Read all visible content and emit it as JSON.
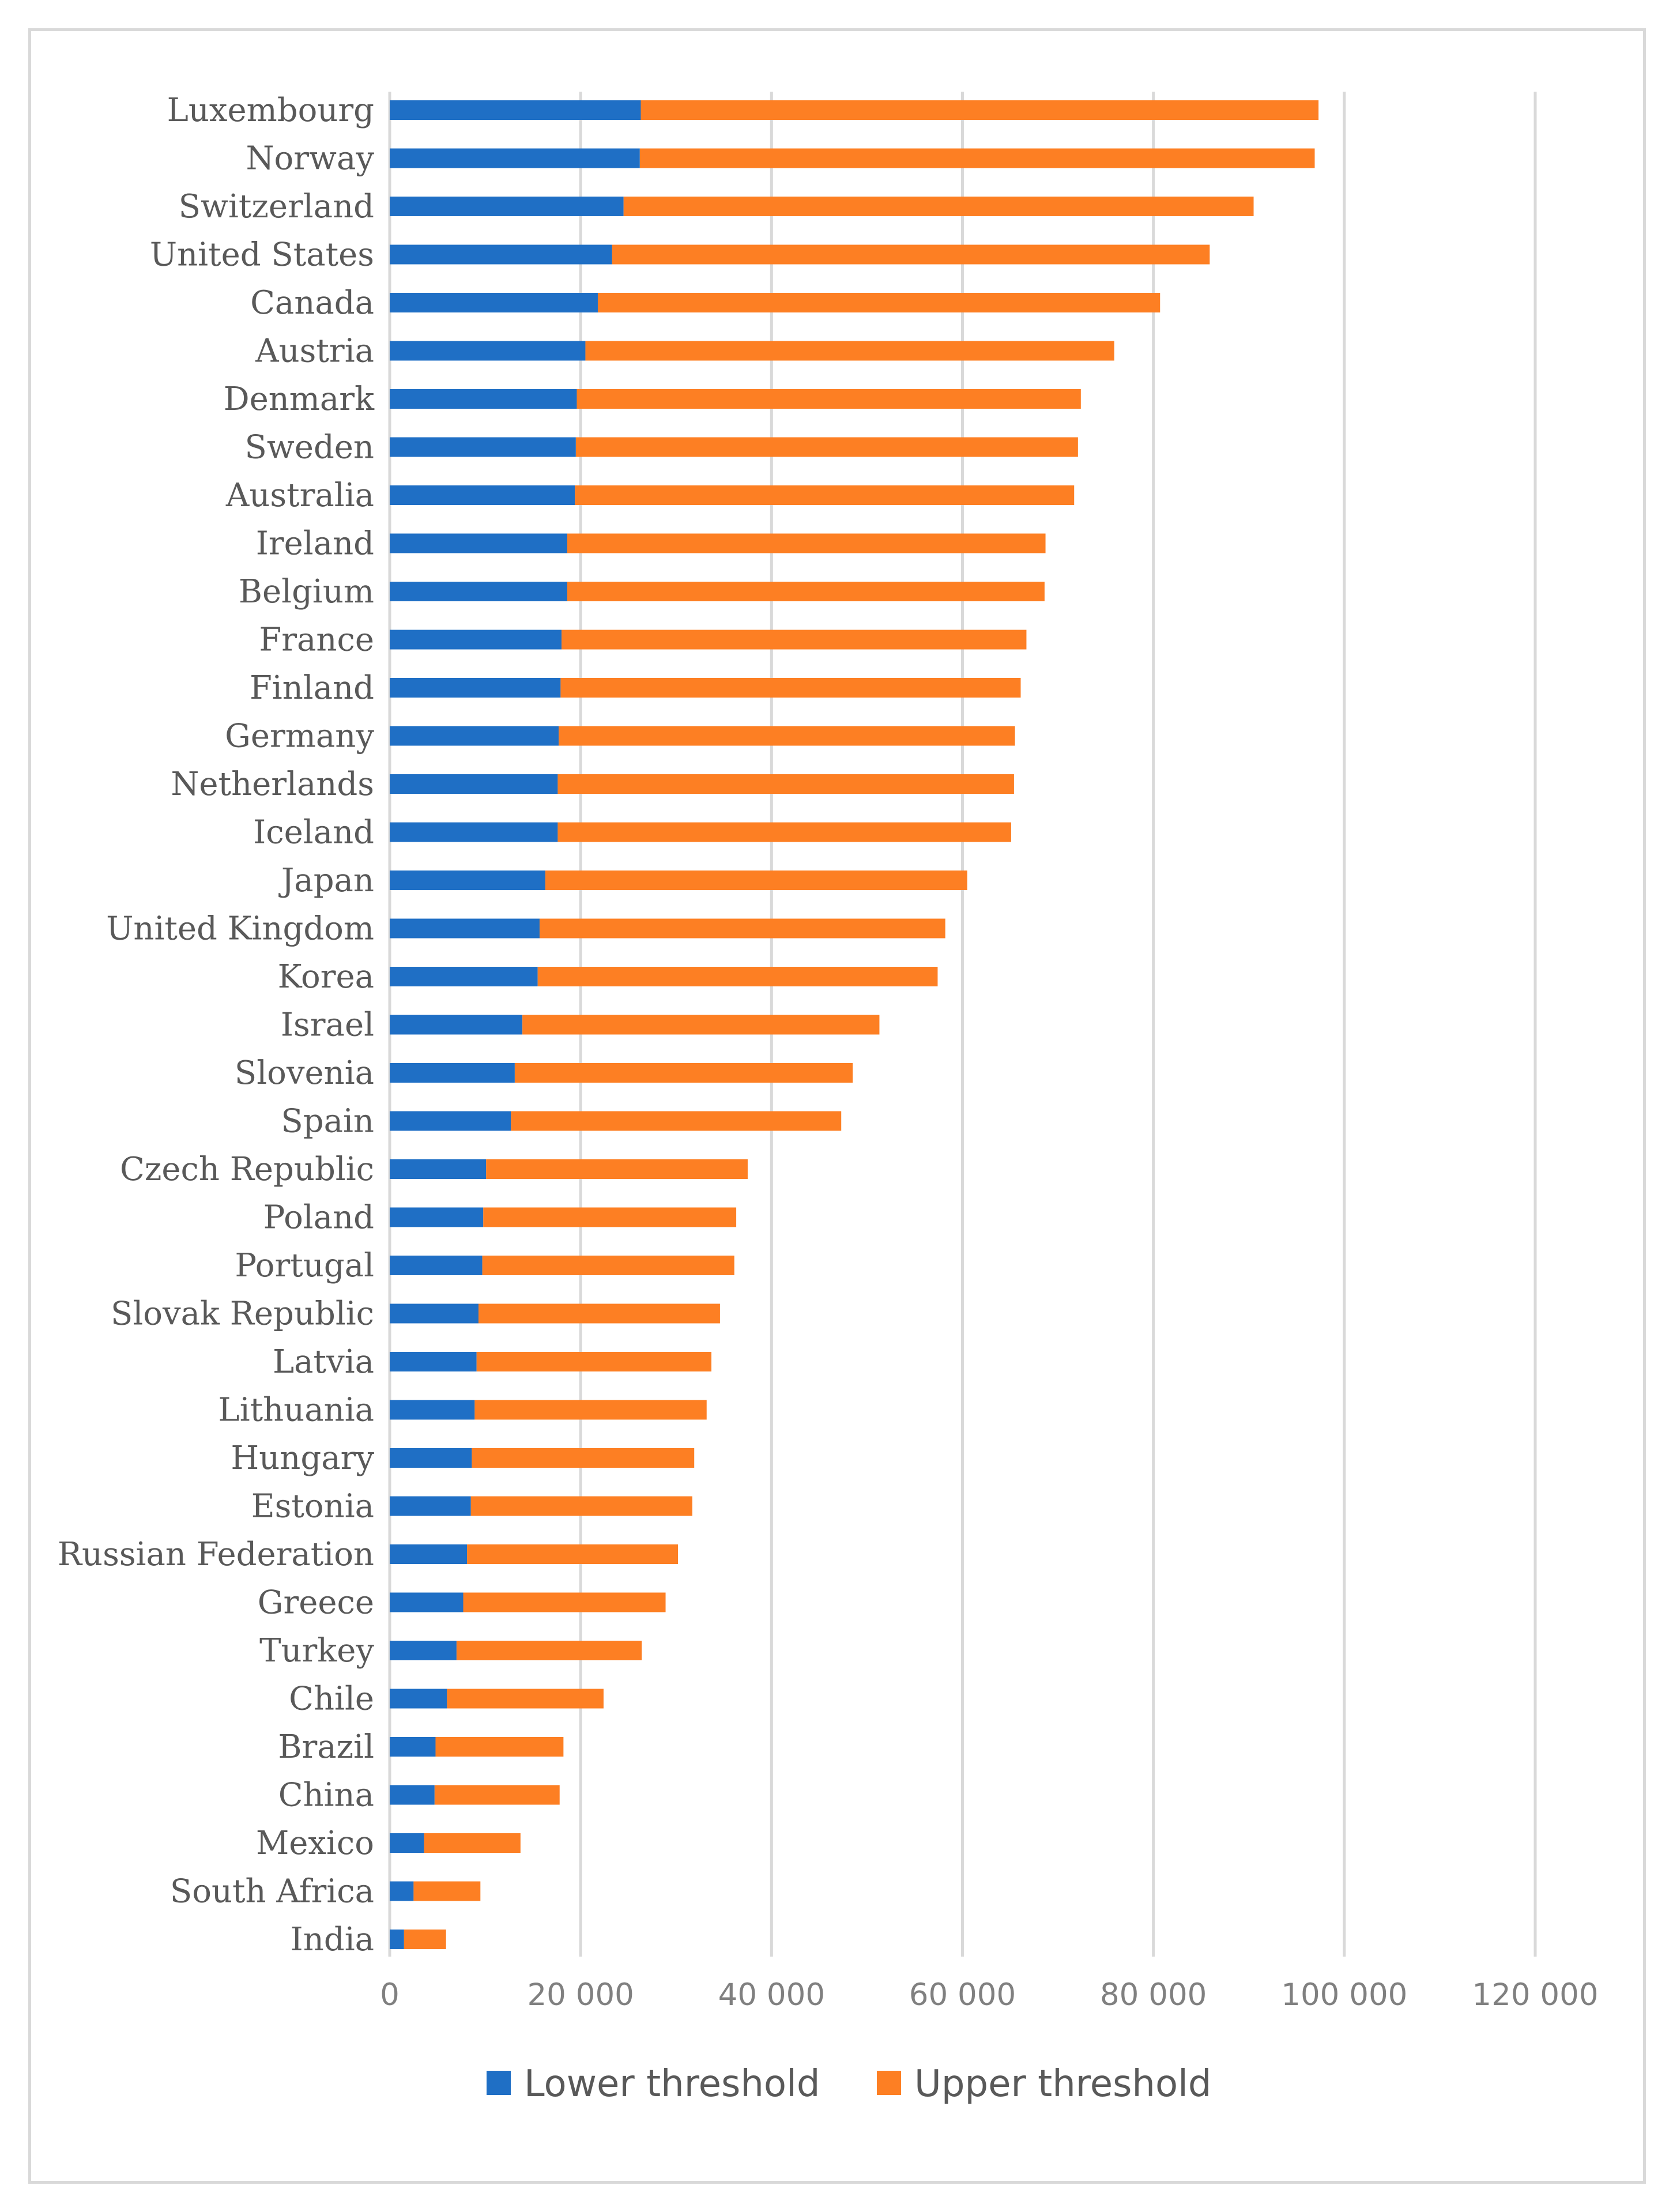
{
  "chart_data": {
    "type": "bar",
    "orientation": "horizontal",
    "stacked": true,
    "categories": [
      "Luxembourg",
      "Norway",
      "Switzerland",
      "United States",
      "Canada",
      "Austria",
      "Denmark",
      "Sweden",
      "Australia",
      "Ireland",
      "Belgium",
      "France",
      "Finland",
      "Germany",
      "Netherlands",
      "Iceland",
      "Japan",
      "United Kingdom",
      "Korea",
      "Israel",
      "Slovenia",
      "Spain",
      "Czech Republic",
      "Poland",
      "Portugal",
      "Slovak Republic",
      "Latvia",
      "Lithuania",
      "Hungary",
      "Estonia",
      "Russian Federation",
      "Greece",
      "Turkey",
      "Chile",
      "Brazil",
      "China",
      "Mexico",
      "South Africa",
      "India"
    ],
    "series": [
      {
        "name": "Lower threshold",
        "color": "#1f6fc5",
        "values": [
          26300,
          26200,
          24500,
          23300,
          21800,
          20500,
          19600,
          19500,
          19400,
          18600,
          18600,
          18000,
          17900,
          17700,
          17600,
          17600,
          16300,
          15700,
          15500,
          13900,
          13100,
          12700,
          10100,
          9800,
          9700,
          9300,
          9100,
          8900,
          8600,
          8500,
          8100,
          7700,
          7000,
          6000,
          4800,
          4700,
          3600,
          2500,
          1500
        ],
        "stack_totals": [
          97300,
          96900,
          90500,
          85900,
          80700,
          75900,
          72400,
          72100,
          71700,
          68700,
          68600,
          66700,
          66100,
          65500,
          65400,
          65100,
          60500,
          58200,
          57400,
          51300,
          48500,
          47300,
          37500,
          36300,
          36100,
          34600,
          33700,
          33200,
          31900,
          31700,
          30200,
          28900,
          26400,
          22400,
          18200,
          17800,
          13700,
          9500,
          5900
        ]
      },
      {
        "name": "Upper threshold",
        "color": "#fd7f23",
        "values": [
          71000,
          70700,
          66000,
          62600,
          58900,
          55400,
          52800,
          52600,
          52300,
          50100,
          50000,
          48700,
          48200,
          47800,
          47800,
          47500,
          44200,
          42500,
          41900,
          37400,
          35400,
          34600,
          27400,
          26500,
          26400,
          25300,
          24600,
          24300,
          23300,
          23200,
          22100,
          21200,
          19400,
          16400,
          13400,
          13100,
          10100,
          7000,
          4400
        ]
      }
    ],
    "xlim": [
      0,
      120000
    ],
    "x_ticks": [
      0,
      20000,
      40000,
      60000,
      80000,
      100000,
      120000
    ],
    "x_tick_labels": [
      "0",
      "20 000",
      "40 000",
      "60 000",
      "80 000",
      "100 000",
      "120 000"
    ],
    "title": "",
    "xlabel": "",
    "ylabel": "",
    "grid": "vertical",
    "legend_position": "bottom",
    "gridline_color": "#d9d9d9"
  }
}
